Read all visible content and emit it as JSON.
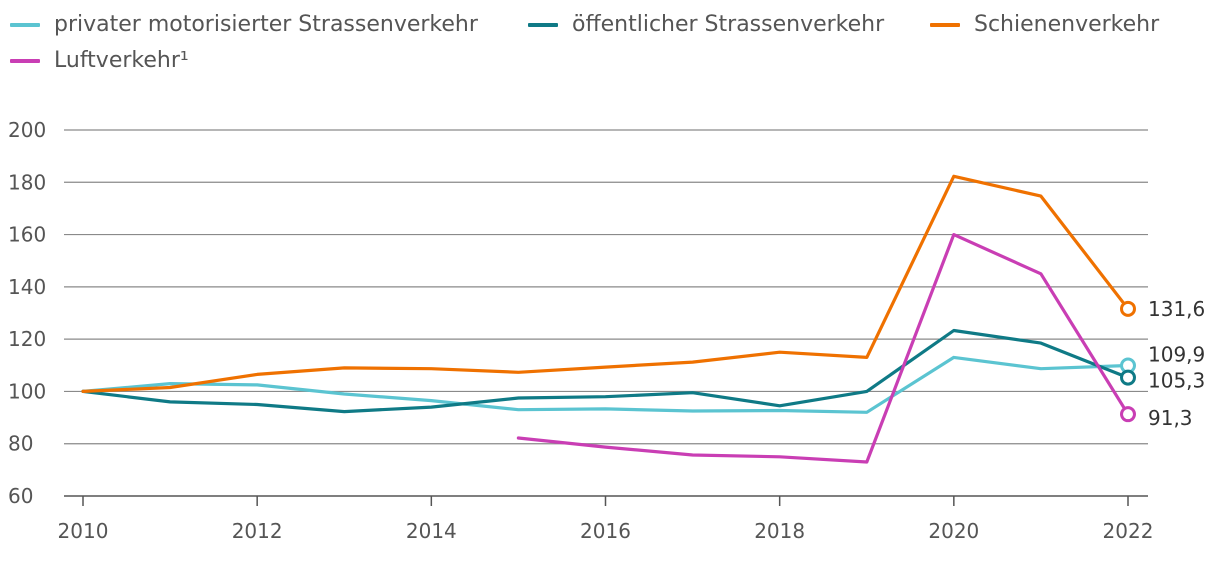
{
  "chart_data": {
    "type": "line",
    "title": "",
    "xlabel": "",
    "ylabel": "",
    "x": [
      2010,
      2011,
      2012,
      2013,
      2014,
      2015,
      2016,
      2017,
      2018,
      2019,
      2020,
      2021,
      2022
    ],
    "xticks": [
      "2010",
      "2012",
      "2014",
      "2016",
      "2018",
      "2020",
      "2022"
    ],
    "yticks": [
      "60",
      "80",
      "100",
      "120",
      "140",
      "160",
      "180",
      "200"
    ],
    "ylim": [
      60,
      200
    ],
    "grid": "horizontal",
    "legend_placement": "top-left",
    "series": [
      {
        "name": "privater motorisierter Strassenverkehr",
        "color": "#5bc4d1",
        "values": [
          100,
          103,
          102.5,
          99,
          96.5,
          93,
          93.3,
          92.5,
          92.7,
          92,
          113,
          108.7,
          109.9
        ],
        "end_label": "109,9"
      },
      {
        "name": "öffentlicher Strassenverkehr",
        "color": "#0f7a86",
        "values": [
          100,
          96,
          95,
          92.3,
          94,
          97.5,
          98,
          99.5,
          94.5,
          100,
          123.3,
          118.5,
          105.3
        ],
        "end_label": "105,3"
      },
      {
        "name": "Schienenverkehr",
        "color": "#ef7100",
        "values": [
          100,
          101.5,
          106.5,
          109,
          108.7,
          107.3,
          109.3,
          111.2,
          115,
          113,
          182.3,
          174.7,
          131.6
        ],
        "end_label": "131,6"
      },
      {
        "name": "Luftverkehr¹",
        "color": "#c93eb4",
        "values": [
          null,
          null,
          null,
          null,
          null,
          82.2,
          78.7,
          75.7,
          75,
          73,
          160,
          145,
          91.3
        ],
        "end_label": "91,3"
      }
    ]
  }
}
